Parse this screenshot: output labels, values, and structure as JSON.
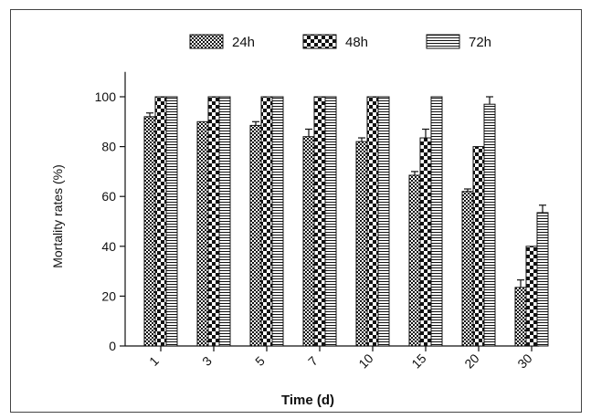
{
  "chart_data": {
    "type": "bar",
    "title": "",
    "xlabel": "Time (d)",
    "ylabel": "Mortality rates (%)",
    "ylim": [
      0,
      110
    ],
    "yticks": [
      0,
      20,
      40,
      60,
      80,
      100
    ],
    "categories": [
      "1",
      "3",
      "5",
      "7",
      "10",
      "15",
      "20",
      "30"
    ],
    "legend_position": "top",
    "grid": false,
    "series": [
      {
        "name": "24h",
        "pattern": "checkerboard-fine",
        "values": [
          92,
          90,
          88.5,
          84,
          82,
          68.5,
          62,
          23.5
        ],
        "errors": [
          1.5,
          0,
          1.5,
          3,
          1.5,
          1.5,
          1,
          3
        ]
      },
      {
        "name": "48h",
        "pattern": "checkerboard-coarse",
        "values": [
          100,
          100,
          100,
          100,
          100,
          83.5,
          80,
          40
        ],
        "errors": [
          0,
          0,
          0,
          0,
          0,
          3.5,
          0,
          0
        ]
      },
      {
        "name": "72h",
        "pattern": "horizontal-lines",
        "values": [
          100,
          100,
          100,
          100,
          100,
          100,
          97,
          53.5
        ],
        "errors": [
          0,
          0,
          0,
          0,
          0,
          0,
          3,
          3
        ]
      }
    ]
  }
}
